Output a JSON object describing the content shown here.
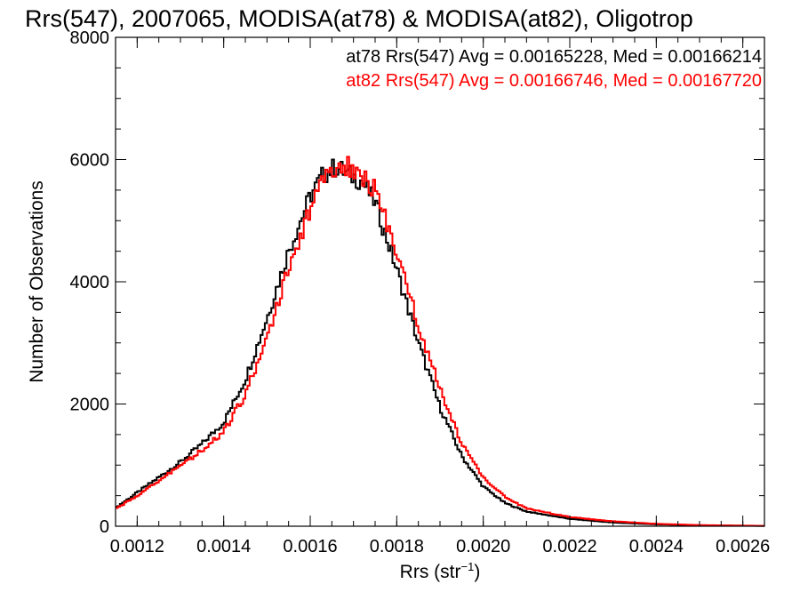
{
  "chart_data": {
    "type": "line",
    "title": "Rrs(547), 2007065, MODISA(at78) & MODISA(at82), Oligotrop",
    "xlabel": "Rrs (str",
    "xlabel_sup": "−1",
    "xlabel_close": ")",
    "ylabel": "Number of Observations",
    "xlim": [
      0.00115,
      0.00265
    ],
    "ylim": [
      0,
      8000
    ],
    "x_ticks": [
      0.0012,
      0.0014,
      0.0016,
      0.0018,
      0.002,
      0.0022,
      0.0024,
      0.0026
    ],
    "x_tick_labels": [
      "0.0012",
      "0.0014",
      "0.0016",
      "0.0018",
      "0.0020",
      "0.0022",
      "0.0024",
      "0.0026"
    ],
    "y_ticks": [
      0,
      2000,
      4000,
      6000,
      8000
    ],
    "y_tick_labels": [
      "0",
      "2000",
      "4000",
      "6000",
      "8000"
    ],
    "grid": false,
    "legend_placement": "top-right",
    "series": [
      {
        "name": "at78 Rrs(547) Avg = 0.00165228, Med = 0.00166214",
        "color": "#000000",
        "x": [
          0.00115,
          0.0012,
          0.00125,
          0.0013,
          0.00135,
          0.0014,
          0.00145,
          0.0015,
          0.00155,
          0.0016,
          0.00163,
          0.00166,
          0.00169,
          0.00172,
          0.00175,
          0.0018,
          0.00185,
          0.0019,
          0.00195,
          0.002,
          0.00205,
          0.0021,
          0.0022,
          0.0023,
          0.0024,
          0.0025,
          0.00265
        ],
        "y": [
          300,
          550,
          800,
          1050,
          1350,
          1700,
          2400,
          3400,
          4500,
          5400,
          5750,
          5880,
          5750,
          5650,
          5300,
          4200,
          3000,
          1950,
          1150,
          650,
          380,
          240,
          120,
          60,
          30,
          15,
          5
        ]
      },
      {
        "name": "at82 Rrs(547) Avg = 0.00166746, Med = 0.00167720",
        "color": "#ff0000",
        "x": [
          0.00115,
          0.0012,
          0.00125,
          0.0013,
          0.00135,
          0.0014,
          0.00145,
          0.0015,
          0.00155,
          0.0016,
          0.00163,
          0.00166,
          0.00169,
          0.00172,
          0.00175,
          0.0018,
          0.00185,
          0.0019,
          0.00195,
          0.002,
          0.00205,
          0.0021,
          0.0022,
          0.0023,
          0.0024,
          0.0025,
          0.00265
        ],
        "y": [
          280,
          500,
          750,
          980,
          1250,
          1550,
          2150,
          3100,
          4200,
          5200,
          5600,
          5880,
          5880,
          5750,
          5500,
          4500,
          3300,
          2250,
          1350,
          800,
          480,
          290,
          150,
          80,
          40,
          18,
          6
        ]
      }
    ]
  }
}
